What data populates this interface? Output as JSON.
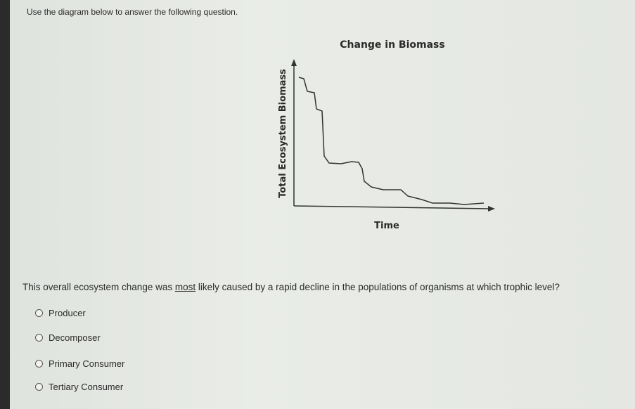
{
  "instruction": "Use the diagram below to answer the following question.",
  "diagram": {
    "title": "Change in Biomass",
    "y_label": "Total Ecosystem Biomass",
    "x_label": "Time"
  },
  "question": {
    "parts": [
      "This overall ecosystem change was ",
      "most",
      " likely caused by a rapid decline in the populations of organisms at which trophic level?"
    ]
  },
  "options": [
    "Producer",
    "Decomposer",
    "Primary Consumer",
    "Tertiary Consumer"
  ]
}
